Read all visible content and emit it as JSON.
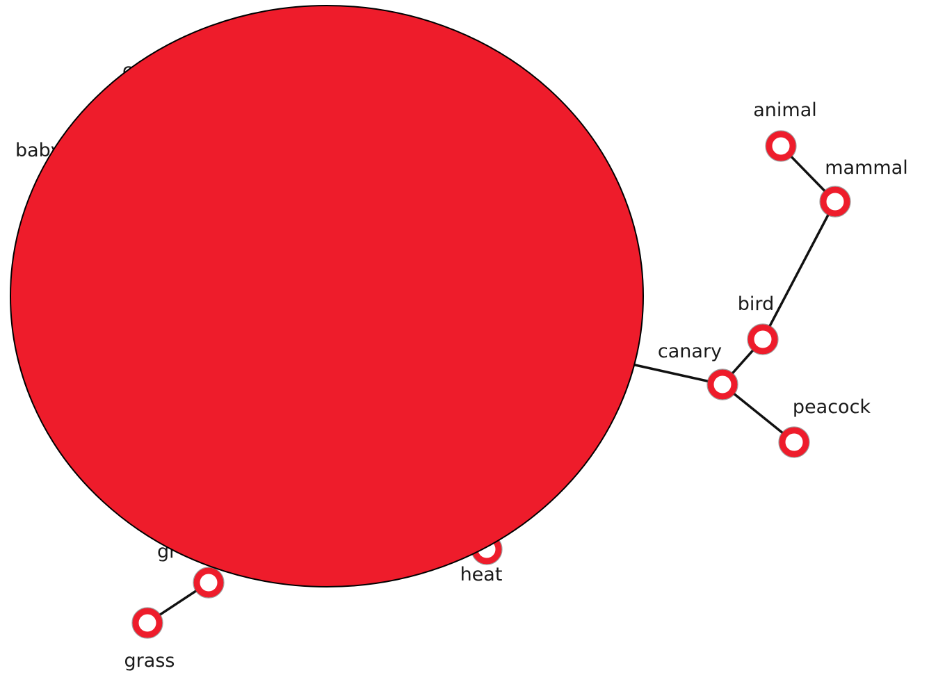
{
  "colors": {
    "node_ring": "#ee1c2b",
    "big_node": "#ee1c2b",
    "edge": "#111111",
    "label": "#1a1a1a"
  },
  "nodes": [
    {
      "id": "animal",
      "label": "animal"
    },
    {
      "id": "mammal",
      "label": "mammal"
    },
    {
      "id": "bird",
      "label": "bird"
    },
    {
      "id": "canary",
      "label": "canary"
    },
    {
      "id": "peacock",
      "label": "peacock"
    },
    {
      "id": "heat",
      "label": "heat"
    },
    {
      "id": "gr-partial",
      "label": "gr"
    },
    {
      "id": "grass",
      "label": "grass"
    },
    {
      "id": "baby-partial",
      "label": "baby"
    },
    {
      "id": "top-partial",
      "label": "c"
    }
  ],
  "edges": [
    {
      "from": "animal",
      "to": "mammal"
    },
    {
      "from": "mammal",
      "to": "bird"
    },
    {
      "from": "bird",
      "to": "canary"
    },
    {
      "from": "canary",
      "to": "peacock"
    },
    {
      "from": "canary",
      "to": "big-node"
    },
    {
      "from": "gr-partial",
      "to": "grass"
    }
  ],
  "big_node": {
    "id": "big-node"
  }
}
